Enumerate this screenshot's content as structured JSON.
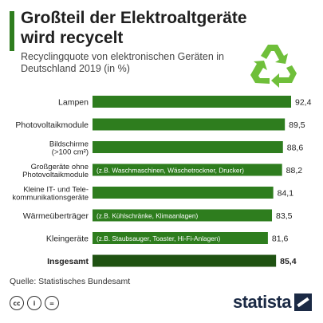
{
  "title": "Großteil der Elektroaltgeräte wird recycelt",
  "subtitle": "Recyclingquote von elektronischen Geräten in Deutschland 2019 (in %)",
  "source": "Quelle: Statistisches Bundesamt",
  "brand": "statista",
  "icons": {
    "recycle": "recycle-icon",
    "cc": [
      "cc-icon",
      "cc-by-icon",
      "cc-nd-icon"
    ]
  },
  "colors": {
    "bar": "#2e7d1e",
    "total_bar": "#1f5212",
    "title": "#1f1f1f",
    "brand": "#1b2a45"
  },
  "chart_data": {
    "type": "bar",
    "orientation": "horizontal",
    "title": "Großteil der Elektroaltgeräte wird recycelt",
    "subtitle": "Recyclingquote von elektronischen Geräten in Deutschland 2019 (in %)",
    "categories": [
      "Lampen",
      "Photovoltaikmodule",
      "Bildschirme (>100 cm²)",
      "Großgeräte ohne Photovoltaikmodule",
      "Kleine IT- und Telekommunikationsgeräte",
      "Wärmeüberträger",
      "Kleingeräte",
      "Insgesamt"
    ],
    "category_lines": [
      [
        "Lampen"
      ],
      [
        "Photovoltaikmodule"
      ],
      [
        "Bildschirme",
        "(>100 cm²)"
      ],
      [
        "Großgeräte ohne",
        "Photovoltaikmodule"
      ],
      [
        "Kleine IT- und Tele-",
        "kommunikationsgeräte"
      ],
      [
        "Wärmeüberträger"
      ],
      [
        "Kleingeräte"
      ],
      [
        "Insgesamt"
      ]
    ],
    "values": [
      92.4,
      89.5,
      88.6,
      88.2,
      84.1,
      83.5,
      81.6,
      85.4
    ],
    "value_labels": [
      "92,4",
      "89,5",
      "88,6",
      "88,2",
      "84,1",
      "83,5",
      "81,6",
      "85,4"
    ],
    "annotations": [
      "",
      "",
      "",
      "(z.B. Waschmaschinen, Wäschetrockner, Drucker)",
      "",
      "(z.B. Kühlschränke, Klimaanlagen)",
      "(z.B. Staubsauger, Toaster, Hi-Fi-Anlagen)",
      ""
    ],
    "highlight_index": 7,
    "xlim": [
      0,
      92.4
    ],
    "grid": false,
    "legend": "none"
  }
}
